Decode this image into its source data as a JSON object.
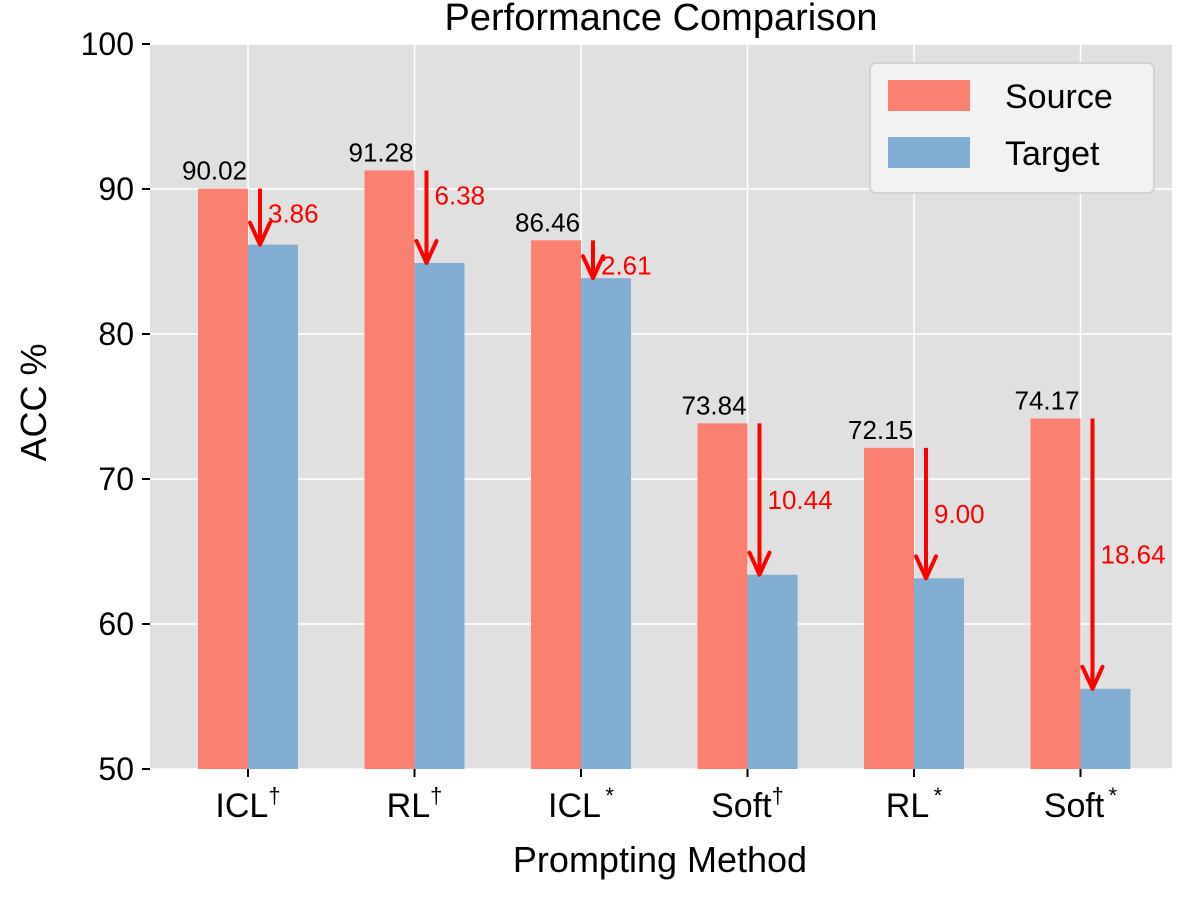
{
  "chart_data": {
    "type": "bar",
    "title": "Performance Comparison",
    "xlabel": "Prompting Method",
    "ylabel": "ACC %",
    "ylim": [
      50,
      100
    ],
    "yticks": [
      50,
      60,
      70,
      80,
      90,
      100
    ],
    "grid": true,
    "legend_position": "top-right",
    "categories": [
      {
        "base": "ICL",
        "mark": "†"
      },
      {
        "base": "RL",
        "mark": "†"
      },
      {
        "base": "ICL",
        "mark": "*"
      },
      {
        "base": "Soft",
        "mark": "†"
      },
      {
        "base": "RL",
        "mark": "*"
      },
      {
        "base": "Soft",
        "mark": "*"
      }
    ],
    "series": [
      {
        "name": "Source",
        "color": "#fa8072",
        "values": [
          90.02,
          91.28,
          86.46,
          73.84,
          72.15,
          74.17
        ]
      },
      {
        "name": "Target",
        "color": "#82aed3",
        "values": [
          86.16,
          84.9,
          83.85,
          63.4,
          63.15,
          55.53
        ]
      }
    ],
    "source_labels": [
      "90.02",
      "91.28",
      "86.46",
      "73.84",
      "72.15",
      "74.17"
    ],
    "drop_labels": [
      "3.86",
      "6.38",
      "2.61",
      "10.44",
      "9.00",
      "18.64"
    ],
    "drop_color": "#ff0000",
    "background_color": "#e0e0e0",
    "grid_color": "#ffffff"
  }
}
